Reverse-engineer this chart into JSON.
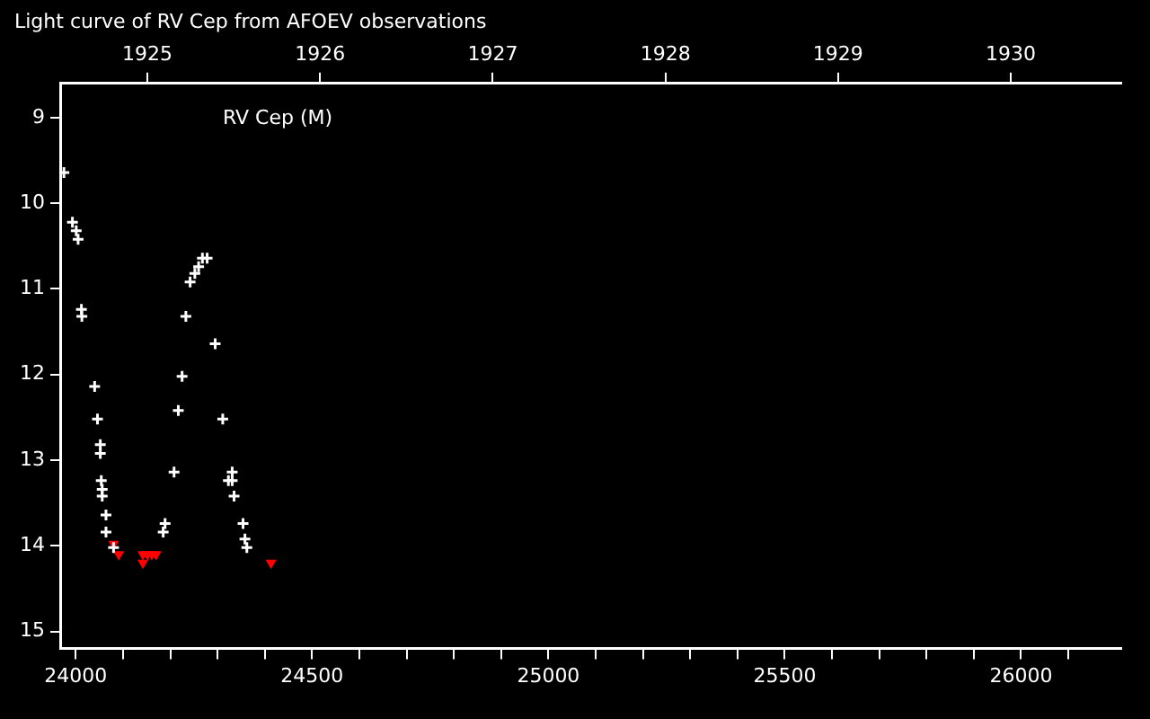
{
  "chart_data": {
    "type": "scatter",
    "title": "Light curve of RV Cep from AFOEV observations",
    "annotations": [
      "RV Cep (M)"
    ],
    "xlim": [
      23969,
      26212
    ],
    "ylim": [
      15.2,
      8.6
    ],
    "xticks": [
      24000,
      {
        "value": 24100,
        "label": null
      },
      {
        "value": 24200,
        "label": null
      },
      {
        "value": 24300,
        "label": null
      },
      {
        "value": 24400,
        "label": null
      },
      24500,
      {
        "value": 24600,
        "label": null
      },
      {
        "value": 24700,
        "label": null
      },
      {
        "value": 24800,
        "label": null
      },
      {
        "value": 24900,
        "label": null
      },
      25000,
      {
        "value": 25100,
        "label": null
      },
      {
        "value": 25200,
        "label": null
      },
      {
        "value": 25300,
        "label": null
      },
      {
        "value": 25400,
        "label": null
      },
      25500,
      {
        "value": 25600,
        "label": null
      },
      {
        "value": 25700,
        "label": null
      },
      {
        "value": 25800,
        "label": null
      },
      {
        "value": 25900,
        "label": null
      },
      26000,
      {
        "value": 26100,
        "label": null
      }
    ],
    "yticks": [
      9,
      10,
      11,
      12,
      13,
      14,
      15
    ],
    "x2lim": [
      1924.5,
      1930.64
    ],
    "x2ticks": [
      1925,
      1926,
      1927,
      1928,
      1929,
      1930
    ],
    "grid": false,
    "legend": false,
    "series": [
      {
        "color": "#ffffff",
        "marker": "cross",
        "x": [
          23975,
          23993,
          24001,
          24005,
          24012,
          24013,
          24040,
          24046,
          24052,
          24052,
          24054,
          24056,
          24056,
          24064,
          24064,
          24080,
          24185,
          24189,
          24208,
          24217,
          24225,
          24233,
          24242,
          24252,
          24260,
          24268,
          24278,
          24295,
          24311,
          24323,
          24331,
          24331,
          24335,
          24354,
          24358,
          24362
        ],
        "values": [
          9.64,
          10.22,
          10.32,
          10.42,
          11.24,
          11.32,
          12.14,
          12.52,
          12.82,
          12.92,
          13.24,
          13.34,
          13.42,
          13.64,
          13.84,
          14.02,
          13.84,
          13.74,
          13.14,
          12.42,
          12.02,
          11.32,
          10.92,
          10.82,
          10.74,
          10.64,
          10.64,
          11.64,
          12.52,
          13.24,
          13.14,
          13.24,
          13.42,
          13.74,
          13.92,
          14.02
        ]
      },
      {
        "color": "#ff0000",
        "marker": "triangle",
        "x": [
          24080,
          24091,
          24142,
          24152,
          24161,
          24170,
          24142,
          24413
        ],
        "values": [
          13.98,
          14.1,
          14.1,
          14.1,
          14.1,
          14.1,
          14.2,
          14.2
        ]
      }
    ]
  }
}
